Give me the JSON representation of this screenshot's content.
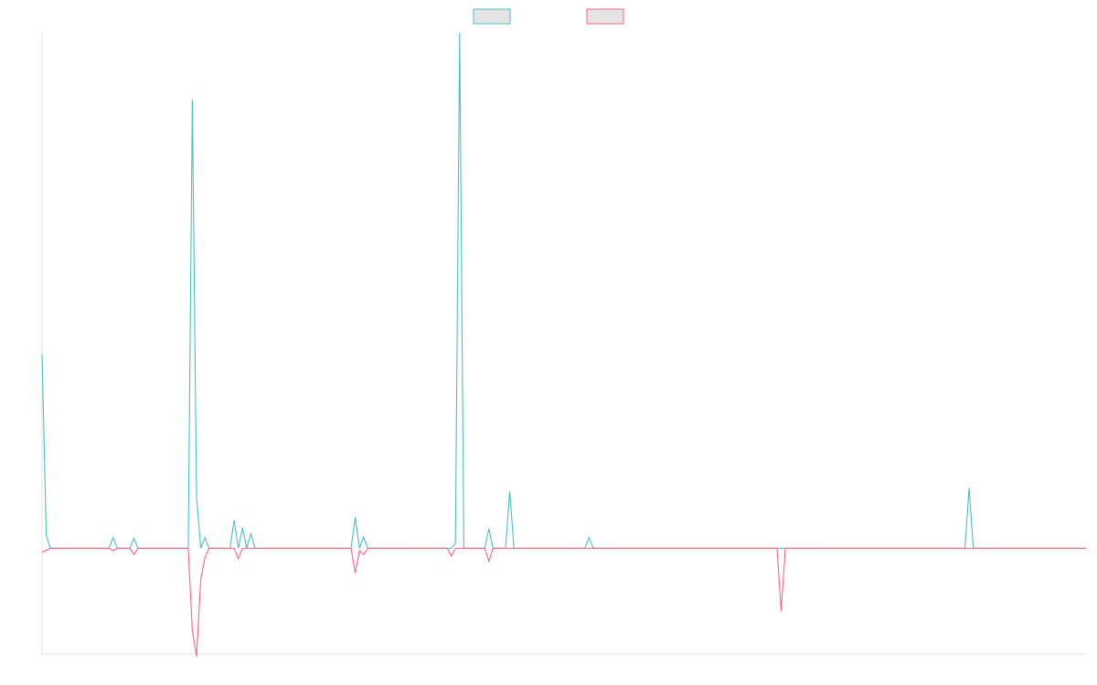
{
  "chart_data": {
    "type": "line",
    "title": "",
    "xlabel": "",
    "ylabel": "",
    "legend_position": "top-center",
    "grid": false,
    "y_axis_visible": true,
    "x_axis_visible": true,
    "ylim": [
      -0.205,
      1.0
    ],
    "xlim": [
      0,
      250
    ],
    "series": [
      {
        "color": "#4bc0c0",
        "points": [
          [
            0,
            0.377
          ],
          [
            1,
            0.025
          ],
          [
            2,
            0
          ],
          [
            16,
            0
          ],
          [
            17,
            0.021
          ],
          [
            18,
            0
          ],
          [
            21,
            0
          ],
          [
            22,
            0.019
          ],
          [
            23,
            0
          ],
          [
            35,
            0
          ],
          [
            36,
            0.87
          ],
          [
            37,
            0.1
          ],
          [
            38,
            0
          ],
          [
            39,
            0.021
          ],
          [
            40,
            0
          ],
          [
            45,
            0
          ],
          [
            46,
            0.055
          ],
          [
            47,
            0
          ],
          [
            48,
            0.04
          ],
          [
            49,
            0
          ],
          [
            50,
            0.028
          ],
          [
            51,
            0
          ],
          [
            74,
            0
          ],
          [
            75,
            0.06
          ],
          [
            76,
            0
          ],
          [
            77,
            0.022
          ],
          [
            78,
            0
          ],
          [
            98,
            0
          ],
          [
            99,
            0.01
          ],
          [
            100,
            1.0
          ],
          [
            101,
            0
          ],
          [
            106,
            0
          ],
          [
            107,
            0.038
          ],
          [
            108,
            0
          ],
          [
            111,
            0
          ],
          [
            112,
            0.11
          ],
          [
            113,
            0
          ],
          [
            130,
            0
          ],
          [
            131,
            0.021
          ],
          [
            132,
            0
          ],
          [
            221,
            0
          ],
          [
            222,
            0.117
          ],
          [
            223,
            0
          ],
          [
            250,
            0
          ]
        ]
      },
      {
        "color": "#ff6384",
        "points": [
          [
            0,
            -0.008
          ],
          [
            2,
            0
          ],
          [
            16,
            0
          ],
          [
            17,
            -0.005
          ],
          [
            18,
            0
          ],
          [
            21,
            0
          ],
          [
            22,
            -0.012
          ],
          [
            23,
            0
          ],
          [
            35,
            0
          ],
          [
            36,
            -0.16
          ],
          [
            37,
            -0.21
          ],
          [
            38,
            -0.06
          ],
          [
            39,
            -0.018
          ],
          [
            40,
            0
          ],
          [
            46,
            0
          ],
          [
            47,
            -0.02
          ],
          [
            48,
            0
          ],
          [
            74,
            0
          ],
          [
            75,
            -0.048
          ],
          [
            76,
            -0.005
          ],
          [
            77,
            -0.012
          ],
          [
            78,
            0
          ],
          [
            97,
            0
          ],
          [
            98,
            -0.015
          ],
          [
            99,
            0
          ],
          [
            106,
            0
          ],
          [
            107,
            -0.025
          ],
          [
            108,
            0
          ],
          [
            176,
            0
          ],
          [
            177,
            -0.122
          ],
          [
            178,
            0
          ],
          [
            250,
            0
          ]
        ]
      }
    ]
  }
}
